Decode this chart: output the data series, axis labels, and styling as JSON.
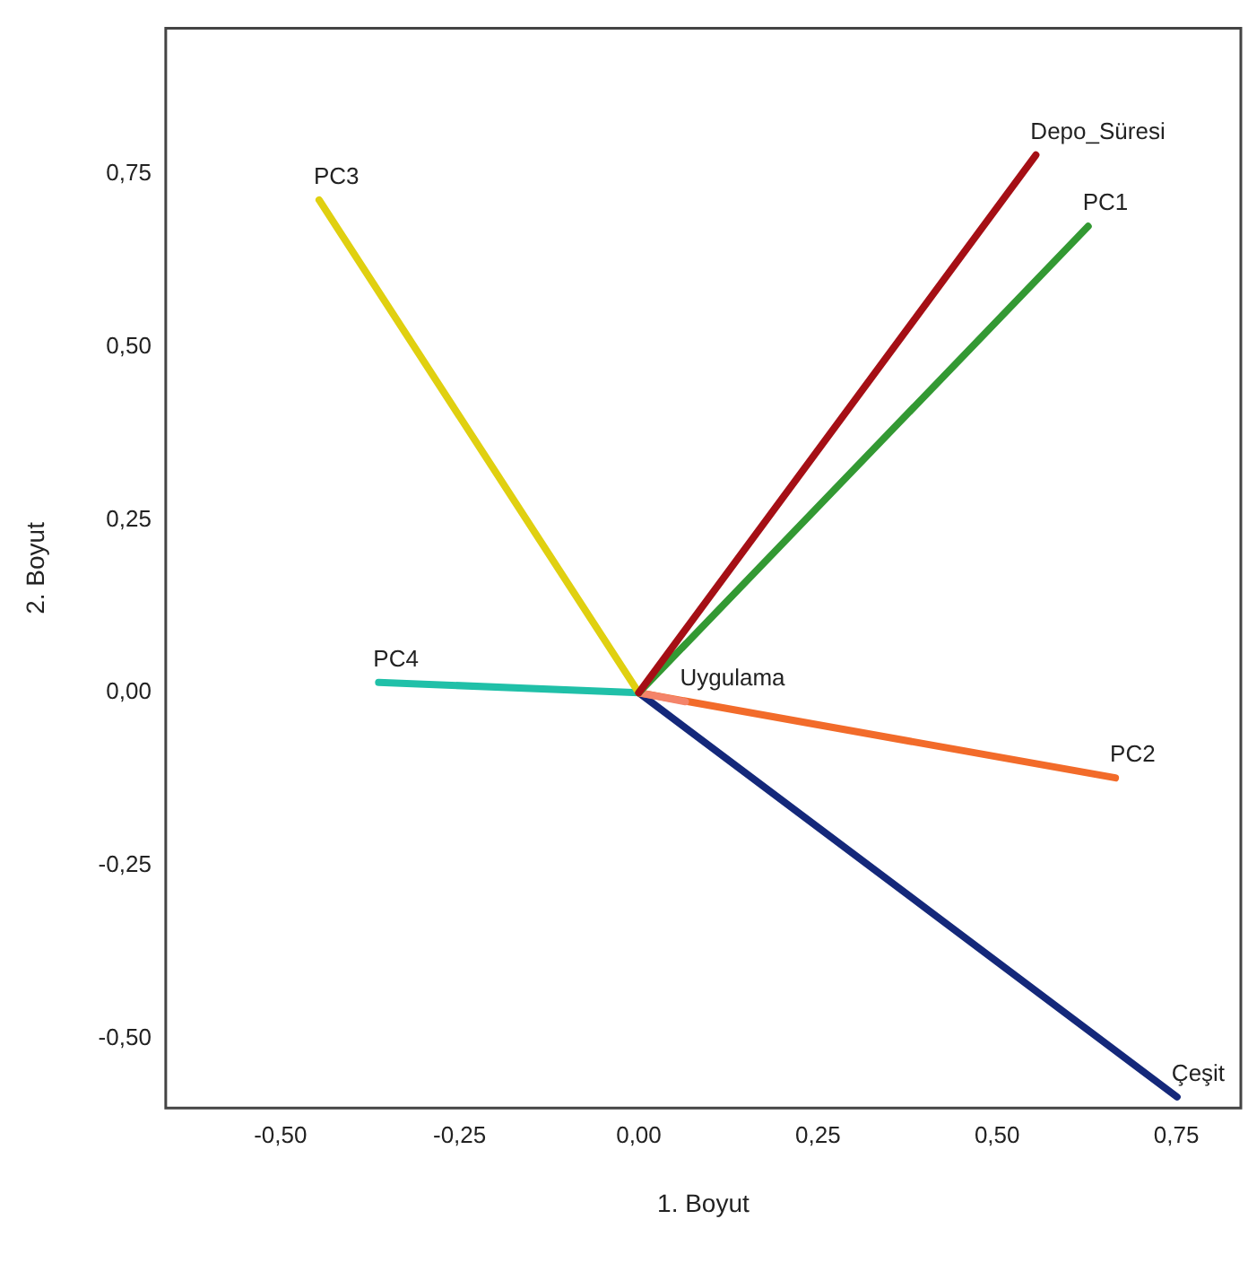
{
  "chart_data": {
    "type": "line",
    "xlabel": "1. Boyut",
    "ylabel": "2. Boyut",
    "marker": "none",
    "grid": false,
    "legend": false,
    "xlim": [
      -0.66,
      0.84
    ],
    "ylim": [
      -0.6,
      0.96
    ],
    "xticks": [
      {
        "value": -0.5,
        "label": "-0,50"
      },
      {
        "value": -0.25,
        "label": "-0,25"
      },
      {
        "value": 0,
        "label": "0,00"
      },
      {
        "value": 0.25,
        "label": "0,25"
      },
      {
        "value": 0.5,
        "label": "0,50"
      },
      {
        "value": 0.75,
        "label": "0,75"
      }
    ],
    "yticks": [
      {
        "value": -0.5,
        "label": "-0,50"
      },
      {
        "value": -0.25,
        "label": "-0,25"
      },
      {
        "value": 0,
        "label": "0,00"
      },
      {
        "value": 0.25,
        "label": "0,25"
      },
      {
        "value": 0.5,
        "label": "0,50"
      },
      {
        "value": 0.75,
        "label": "0,75"
      }
    ],
    "series": [
      {
        "name": "Depo_Süresi",
        "color": "#a50f15",
        "x": [
          0,
          0.554
        ],
        "values": [
          0,
          0.777
        ]
      },
      {
        "name": "PC1",
        "color": "#339933",
        "x": [
          0,
          0.627
        ],
        "values": [
          0,
          0.674
        ]
      },
      {
        "name": "PC3",
        "color": "#e0d010",
        "x": [
          0,
          -0.446
        ],
        "values": [
          0,
          0.712
        ]
      },
      {
        "name": "PC4",
        "color": "#20c0a8",
        "x": [
          0,
          -0.363
        ],
        "values": [
          0,
          0.015
        ]
      },
      {
        "name": "Uygulama",
        "color": "#f4846a",
        "x": [
          0,
          0.065
        ],
        "values": [
          0,
          -0.013
        ]
      },
      {
        "name": "PC2",
        "color": "#f26b2a",
        "x": [
          0,
          0.665
        ],
        "values": [
          0,
          -0.123
        ]
      },
      {
        "name": "Çeşit",
        "color": "#14287a",
        "x": [
          0,
          0.751
        ],
        "values": [
          0,
          -0.584
        ]
      }
    ]
  }
}
